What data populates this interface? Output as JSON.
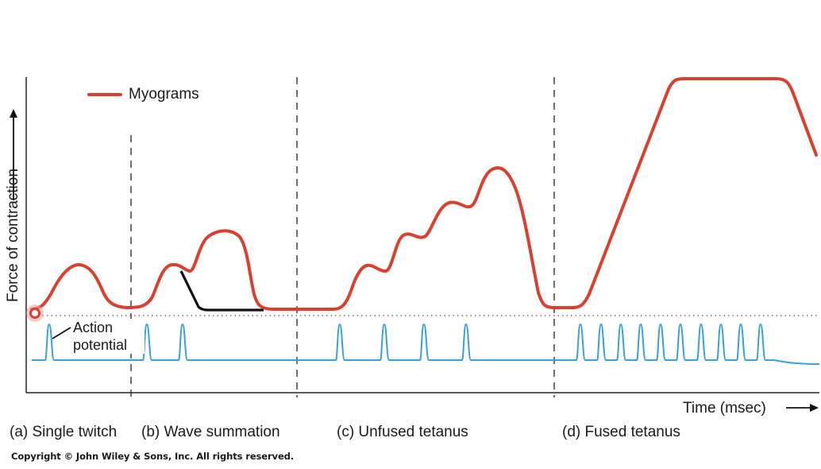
{
  "chart_data": {
    "type": "line",
    "title": "",
    "xlabel": "Time (msec)",
    "ylabel": "Force of contraction",
    "legend": {
      "entries": [
        "Myograms"
      ],
      "placement": "top-left"
    },
    "annotations": [
      "Action potential"
    ],
    "phases": [
      "(a) Single twitch",
      "(b) Wave summation",
      "(c) Unfused tetanus",
      "(d) Fused tetanus"
    ],
    "series": [
      {
        "name": "Myograms",
        "color": "#d9402f"
      },
      {
        "color": "#3aa0d8"
      },
      {
        "color": "#111111"
      }
    ],
    "grid": false
  },
  "colors": {
    "myogram": "#d9402f",
    "action_potential": "#3aa0d8",
    "single_twitch_decay": "#111111",
    "axis": "#222222"
  },
  "copyright": "Copyright © John Wiley & Sons, Inc. All rights reserved."
}
